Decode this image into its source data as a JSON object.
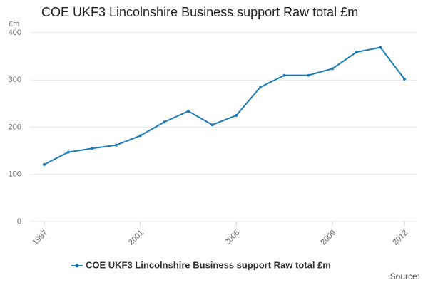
{
  "chart_data": {
    "type": "line",
    "title": "COE UKF3 Lincolnshire Business support Raw total £m",
    "y_label": "£m",
    "source": "Source:",
    "x": [
      1997,
      1998,
      1999,
      2000,
      2001,
      2002,
      2003,
      2004,
      2005,
      2006,
      2007,
      2008,
      2009,
      2010,
      2011,
      2012
    ],
    "series": [
      {
        "name": "COE UKF3 Lincolnshire Business support Raw total £m",
        "color": "#1a7bb9",
        "values": [
          121,
          147,
          155,
          162,
          182,
          211,
          234,
          205,
          225,
          285,
          310,
          310,
          324,
          359,
          369,
          302
        ]
      }
    ],
    "xlim": [
      1997,
      2012
    ],
    "xticks": [
      1997,
      2001,
      2005,
      2009,
      2012
    ],
    "ylim": [
      0,
      400
    ],
    "yticks": [
      0,
      100,
      200,
      300,
      400
    ],
    "grid": true,
    "legend": "bottom"
  }
}
